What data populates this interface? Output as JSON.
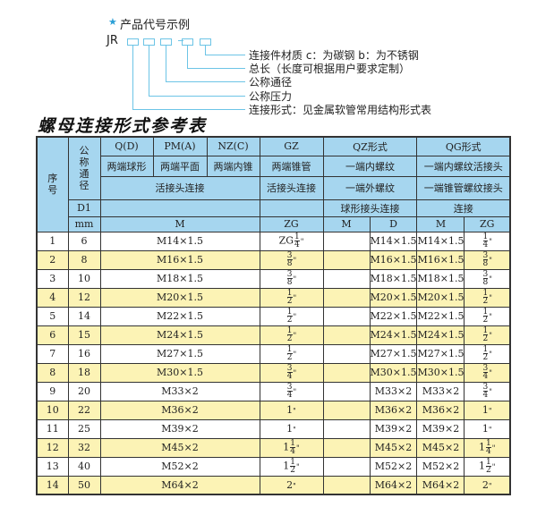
{
  "example": {
    "star_icon": "star-icon",
    "title": "产品代号示例",
    "code_prefix": "JR",
    "labels": [
      "连接件材质    c：为碳钢   b：为不锈钢",
      "总长（长度可根据用户要求定制）",
      "公称通径",
      "公称压力",
      "连接形式：见金属软管常用结构形式表"
    ]
  },
  "table_title": "螺母连接形式参考表",
  "colors": {
    "header_bg": "#a6d6ef",
    "alt_row_bg": "#fcf3b5",
    "accent": "#6cc4e6"
  },
  "table": {
    "header": {
      "seq": "序号",
      "nominal": "公称通径",
      "qd": "Q(D)",
      "pm": "PM(A)",
      "nz": "NZ(C)",
      "gz": "GZ",
      "qz": "QZ形式",
      "qg": "QG形式",
      "qd_desc": "两端球形",
      "pm_desc": "两端平面",
      "nz_desc": "两端内锥",
      "gz_desc": "两端锥管",
      "qz_desc": "一端内螺纹",
      "qg_desc": "一端内螺纹活接头",
      "union": "活接头连接",
      "gz_union": "活接头连接",
      "qz_desc2": "一端外螺纹",
      "qg_desc2": "一端锥管螺纹接头",
      "d1": "D1",
      "qz_desc3": "球形接头连接",
      "qg_desc3": "连接",
      "mm": "mm",
      "m": "M",
      "zg": "ZG",
      "qz_m": "M",
      "qz_d": "D",
      "qg_m": "M",
      "qg_zg": "ZG"
    },
    "rows": [
      {
        "no": "1",
        "dn": "6",
        "m": "M14×1.5",
        "gz": {
          "pre": "ZG",
          "whole": "",
          "num": "1",
          "den": "4"
        },
        "qz_m": "",
        "qz_d": "M14×1.5",
        "qg_m": "M14×1.5",
        "qg_zg": {
          "pre": "",
          "whole": "",
          "num": "1",
          "den": "4"
        }
      },
      {
        "no": "2",
        "dn": "8",
        "m": "M16×1.5",
        "gz": {
          "pre": "",
          "whole": "",
          "num": "3",
          "den": "8"
        },
        "qz_m": "",
        "qz_d": "M16×1.5",
        "qg_m": "M16×1.5",
        "qg_zg": {
          "pre": "",
          "whole": "",
          "num": "3",
          "den": "8"
        }
      },
      {
        "no": "3",
        "dn": "10",
        "m": "M18×1.5",
        "gz": {
          "pre": "",
          "whole": "",
          "num": "3",
          "den": "8"
        },
        "qz_m": "",
        "qz_d": "M18×1.5",
        "qg_m": "M18×1.5",
        "qg_zg": {
          "pre": "",
          "whole": "",
          "num": "3",
          "den": "8"
        }
      },
      {
        "no": "4",
        "dn": "12",
        "m": "M20×1.5",
        "gz": {
          "pre": "",
          "whole": "",
          "num": "1",
          "den": "2"
        },
        "qz_m": "",
        "qz_d": "M20×1.5",
        "qg_m": "M20×1.5",
        "qg_zg": {
          "pre": "",
          "whole": "",
          "num": "1",
          "den": "2"
        }
      },
      {
        "no": "5",
        "dn": "14",
        "m": "M22×1.5",
        "gz": {
          "pre": "",
          "whole": "",
          "num": "1",
          "den": "2"
        },
        "qz_m": "",
        "qz_d": "M22×1.5",
        "qg_m": "M22×1.5",
        "qg_zg": {
          "pre": "",
          "whole": "",
          "num": "1",
          "den": "2"
        }
      },
      {
        "no": "6",
        "dn": "15",
        "m": "M24×1.5",
        "gz": {
          "pre": "",
          "whole": "",
          "num": "1",
          "den": "2"
        },
        "qz_m": "",
        "qz_d": "M24×1.5",
        "qg_m": "M24×1.5",
        "qg_zg": {
          "pre": "",
          "whole": "",
          "num": "1",
          "den": "2"
        }
      },
      {
        "no": "7",
        "dn": "16",
        "m": "M27×1.5",
        "gz": {
          "pre": "",
          "whole": "",
          "num": "1",
          "den": "2"
        },
        "qz_m": "",
        "qz_d": "M27×1.5",
        "qg_m": "M27×1.5",
        "qg_zg": {
          "pre": "",
          "whole": "",
          "num": "1",
          "den": "2"
        }
      },
      {
        "no": "8",
        "dn": "18",
        "m": "M30×1.5",
        "gz": {
          "pre": "",
          "whole": "",
          "num": "3",
          "den": "4"
        },
        "qz_m": "",
        "qz_d": "M30×1.5",
        "qg_m": "M30×1.5",
        "qg_zg": {
          "pre": "",
          "whole": "",
          "num": "3",
          "den": "4"
        }
      },
      {
        "no": "9",
        "dn": "20",
        "m": "M33×2",
        "gz": {
          "pre": "",
          "whole": "",
          "num": "3",
          "den": "4"
        },
        "qz_m": "",
        "qz_d": "M33×2",
        "qg_m": "M33×2",
        "qg_zg": {
          "pre": "",
          "whole": "",
          "num": "3",
          "den": "4"
        }
      },
      {
        "no": "10",
        "dn": "22",
        "m": "M36×2",
        "gz": {
          "pre": "",
          "whole": "1",
          "num": "",
          "den": ""
        },
        "qz_m": "",
        "qz_d": "M36×2",
        "qg_m": "M36×2",
        "qg_zg": {
          "pre": "",
          "whole": "1",
          "num": "",
          "den": ""
        }
      },
      {
        "no": "11",
        "dn": "25",
        "m": "M39×2",
        "gz": {
          "pre": "",
          "whole": "1",
          "num": "",
          "den": ""
        },
        "qz_m": "",
        "qz_d": "M39×2",
        "qg_m": "M39×2",
        "qg_zg": {
          "pre": "",
          "whole": "1",
          "num": "",
          "den": ""
        }
      },
      {
        "no": "12",
        "dn": "32",
        "m": "M45×2",
        "gz": {
          "pre": "",
          "whole": "1",
          "num": "1",
          "den": "4"
        },
        "qz_m": "",
        "qz_d": "M45×2",
        "qg_m": "M45×2",
        "qg_zg": {
          "pre": "",
          "whole": "1",
          "num": "1",
          "den": "4"
        }
      },
      {
        "no": "13",
        "dn": "40",
        "m": "M52×2",
        "gz": {
          "pre": "",
          "whole": "1",
          "num": "1",
          "den": "2"
        },
        "qz_m": "",
        "qz_d": "M52×2",
        "qg_m": "M52×2",
        "qg_zg": {
          "pre": "",
          "whole": "1",
          "num": "1",
          "den": "2"
        }
      },
      {
        "no": "14",
        "dn": "50",
        "m": "M64×2",
        "gz": {
          "pre": "",
          "whole": "2",
          "num": "",
          "den": ""
        },
        "qz_m": "",
        "qz_d": "M64×2",
        "qg_m": "M64×2",
        "qg_zg": {
          "pre": "",
          "whole": "2",
          "num": "",
          "den": ""
        }
      }
    ]
  }
}
